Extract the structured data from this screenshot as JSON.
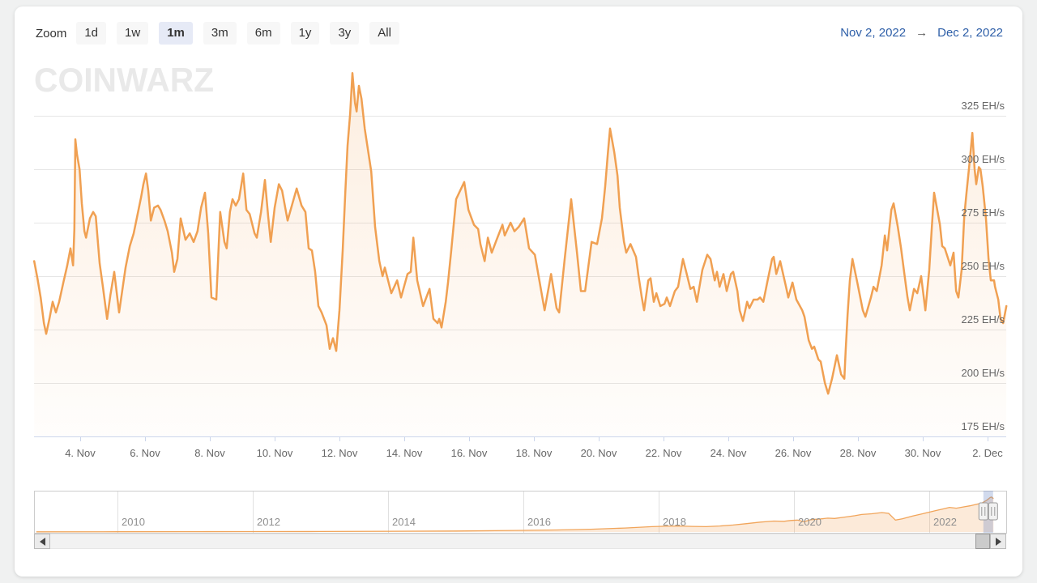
{
  "window": {
    "background": "#f0f1f1",
    "card_background": "#ffffff"
  },
  "watermark": "COINWARZ",
  "toolbar": {
    "zoom_label": "Zoom",
    "buttons": [
      {
        "label": "1d",
        "selected": false
      },
      {
        "label": "1w",
        "selected": false
      },
      {
        "label": "1m",
        "selected": true
      },
      {
        "label": "3m",
        "selected": false
      },
      {
        "label": "6m",
        "selected": false
      },
      {
        "label": "1y",
        "selected": false
      },
      {
        "label": "3y",
        "selected": false
      },
      {
        "label": "All",
        "selected": false
      }
    ],
    "selected_button_color": "#e6eaf6",
    "date_range": {
      "from": "Nov 2, 2022",
      "arrow": "→",
      "to": "Dec 2, 2022",
      "text_color": "#2e5fa8"
    }
  },
  "icons": {
    "range_arrow": "→",
    "scrollbar_left": "left-triangle",
    "scrollbar_right": "right-triangle",
    "navigator_handle": "grip-with-two-lines"
  },
  "chart_data": {
    "type": "area",
    "title": "",
    "y_unit": "EH/s",
    "x_unit": "day of month (November 2022; 31.0+ = December 2022)",
    "x_range_shown": [
      "Nov 2, 2022",
      "Dec 2, 2022"
    ],
    "ylim": [
      175,
      351
    ],
    "grid": "horizontal-only",
    "line_color": "#f0a052",
    "fill_color_top": "rgba(240,160,82,0.18)",
    "fill_color_bottom": "rgba(240,160,82,0.02)",
    "axis_line_color": "#ccd6eb",
    "grid_color": "#e6e6e6",
    "y_ticks": [
      {
        "value": 175,
        "label": "175 EH/s"
      },
      {
        "value": 200,
        "label": "200 EH/s"
      },
      {
        "value": 225,
        "label": "225 EH/s"
      },
      {
        "value": 250,
        "label": "250 EH/s"
      },
      {
        "value": 275,
        "label": "275 EH/s"
      },
      {
        "value": 300,
        "label": "300 EH/s"
      },
      {
        "value": 325,
        "label": "325 EH/s"
      }
    ],
    "x_ticks": [
      {
        "day": 4,
        "label": "4. Nov"
      },
      {
        "day": 6,
        "label": "6. Nov"
      },
      {
        "day": 8,
        "label": "8. Nov"
      },
      {
        "day": 10,
        "label": "10. Nov"
      },
      {
        "day": 12,
        "label": "12. Nov"
      },
      {
        "day": 14,
        "label": "14. Nov"
      },
      {
        "day": 16,
        "label": "16. Nov"
      },
      {
        "day": 18,
        "label": "18. Nov"
      },
      {
        "day": 20,
        "label": "20. Nov"
      },
      {
        "day": 22,
        "label": "22. Nov"
      },
      {
        "day": 24,
        "label": "24. Nov"
      },
      {
        "day": 26,
        "label": "26. Nov"
      },
      {
        "day": 28,
        "label": "28. Nov"
      },
      {
        "day": 30,
        "label": "30. Nov"
      },
      {
        "day": 32,
        "label": "2. Dec"
      }
    ],
    "points": [
      [
        2.58,
        257
      ],
      [
        2.68,
        249
      ],
      [
        2.78,
        240
      ],
      [
        2.88,
        228
      ],
      [
        2.95,
        223
      ],
      [
        3.05,
        230
      ],
      [
        3.15,
        238
      ],
      [
        3.25,
        233
      ],
      [
        3.35,
        238
      ],
      [
        3.48,
        247
      ],
      [
        3.6,
        255
      ],
      [
        3.7,
        263
      ],
      [
        3.78,
        255
      ],
      [
        3.82,
        272
      ],
      [
        3.85,
        314
      ],
      [
        3.9,
        307
      ],
      [
        3.98,
        300
      ],
      [
        4.05,
        284
      ],
      [
        4.13,
        271
      ],
      [
        4.18,
        268
      ],
      [
        4.3,
        277
      ],
      [
        4.4,
        280
      ],
      [
        4.48,
        278
      ],
      [
        4.6,
        256
      ],
      [
        4.7,
        245
      ],
      [
        4.83,
        230
      ],
      [
        4.93,
        241
      ],
      [
        5.05,
        252
      ],
      [
        5.2,
        233
      ],
      [
        5.4,
        254
      ],
      [
        5.53,
        264
      ],
      [
        5.65,
        270
      ],
      [
        5.88,
        287
      ],
      [
        5.95,
        293
      ],
      [
        6.03,
        298
      ],
      [
        6.1,
        290
      ],
      [
        6.18,
        276
      ],
      [
        6.28,
        282
      ],
      [
        6.4,
        283
      ],
      [
        6.48,
        281
      ],
      [
        6.6,
        276
      ],
      [
        6.7,
        271
      ],
      [
        6.83,
        261
      ],
      [
        6.9,
        252
      ],
      [
        7.0,
        258
      ],
      [
        7.1,
        277
      ],
      [
        7.25,
        267
      ],
      [
        7.38,
        270
      ],
      [
        7.5,
        266
      ],
      [
        7.62,
        271
      ],
      [
        7.73,
        282
      ],
      [
        7.85,
        289
      ],
      [
        7.95,
        270
      ],
      [
        8.05,
        240
      ],
      [
        8.2,
        239
      ],
      [
        8.32,
        280
      ],
      [
        8.45,
        266
      ],
      [
        8.52,
        263
      ],
      [
        8.62,
        280
      ],
      [
        8.7,
        286
      ],
      [
        8.8,
        283
      ],
      [
        8.9,
        286
      ],
      [
        9.03,
        298
      ],
      [
        9.13,
        281
      ],
      [
        9.23,
        279
      ],
      [
        9.38,
        270
      ],
      [
        9.45,
        268
      ],
      [
        9.58,
        280
      ],
      [
        9.7,
        295
      ],
      [
        9.8,
        278
      ],
      [
        9.88,
        266
      ],
      [
        10.0,
        282
      ],
      [
        10.13,
        293
      ],
      [
        10.23,
        290
      ],
      [
        10.4,
        276
      ],
      [
        10.55,
        284
      ],
      [
        10.68,
        291
      ],
      [
        10.83,
        283
      ],
      [
        10.95,
        280
      ],
      [
        11.05,
        263
      ],
      [
        11.15,
        262
      ],
      [
        11.25,
        252
      ],
      [
        11.35,
        236
      ],
      [
        11.45,
        233
      ],
      [
        11.6,
        227
      ],
      [
        11.7,
        216
      ],
      [
        11.8,
        221
      ],
      [
        11.9,
        215
      ],
      [
        12.0,
        234
      ],
      [
        12.1,
        262
      ],
      [
        12.18,
        289
      ],
      [
        12.25,
        311
      ],
      [
        12.33,
        326
      ],
      [
        12.4,
        345
      ],
      [
        12.48,
        331
      ],
      [
        12.53,
        327
      ],
      [
        12.6,
        339
      ],
      [
        12.68,
        333
      ],
      [
        12.78,
        319
      ],
      [
        12.88,
        309
      ],
      [
        12.98,
        299
      ],
      [
        13.1,
        273
      ],
      [
        13.23,
        257
      ],
      [
        13.33,
        250
      ],
      [
        13.4,
        254
      ],
      [
        13.6,
        242
      ],
      [
        13.78,
        248
      ],
      [
        13.9,
        240
      ],
      [
        14.1,
        251
      ],
      [
        14.2,
        252
      ],
      [
        14.28,
        268
      ],
      [
        14.4,
        248
      ],
      [
        14.58,
        236
      ],
      [
        14.78,
        244
      ],
      [
        14.9,
        230
      ],
      [
        15.03,
        228
      ],
      [
        15.08,
        230
      ],
      [
        15.15,
        226
      ],
      [
        15.28,
        238
      ],
      [
        15.35,
        247
      ],
      [
        15.45,
        262
      ],
      [
        15.6,
        286
      ],
      [
        15.85,
        294
      ],
      [
        15.98,
        281
      ],
      [
        16.15,
        274
      ],
      [
        16.28,
        272
      ],
      [
        16.35,
        265
      ],
      [
        16.48,
        257
      ],
      [
        16.58,
        268
      ],
      [
        16.7,
        261
      ],
      [
        16.85,
        267
      ],
      [
        17.03,
        274
      ],
      [
        17.1,
        269
      ],
      [
        17.28,
        275
      ],
      [
        17.4,
        271
      ],
      [
        17.53,
        273
      ],
      [
        17.7,
        277
      ],
      [
        17.85,
        263
      ],
      [
        18.03,
        260
      ],
      [
        18.33,
        234
      ],
      [
        18.53,
        251
      ],
      [
        18.7,
        235
      ],
      [
        18.78,
        233
      ],
      [
        18.95,
        258
      ],
      [
        19.15,
        286
      ],
      [
        19.33,
        261
      ],
      [
        19.45,
        243
      ],
      [
        19.58,
        243
      ],
      [
        19.78,
        266
      ],
      [
        19.95,
        265
      ],
      [
        20.1,
        277
      ],
      [
        20.2,
        292
      ],
      [
        20.28,
        307
      ],
      [
        20.35,
        319
      ],
      [
        20.48,
        308
      ],
      [
        20.58,
        297
      ],
      [
        20.65,
        282
      ],
      [
        20.78,
        266
      ],
      [
        20.85,
        261
      ],
      [
        20.98,
        265
      ],
      [
        21.15,
        259
      ],
      [
        21.23,
        250
      ],
      [
        21.33,
        240
      ],
      [
        21.4,
        234
      ],
      [
        21.53,
        248
      ],
      [
        21.6,
        249
      ],
      [
        21.7,
        238
      ],
      [
        21.78,
        242
      ],
      [
        21.9,
        236
      ],
      [
        22.03,
        237
      ],
      [
        22.1,
        240
      ],
      [
        22.2,
        236
      ],
      [
        22.35,
        243
      ],
      [
        22.45,
        245
      ],
      [
        22.6,
        258
      ],
      [
        22.7,
        252
      ],
      [
        22.83,
        244
      ],
      [
        22.93,
        245
      ],
      [
        23.03,
        238
      ],
      [
        23.2,
        253
      ],
      [
        23.35,
        260
      ],
      [
        23.45,
        258
      ],
      [
        23.58,
        248
      ],
      [
        23.65,
        252
      ],
      [
        23.73,
        245
      ],
      [
        23.85,
        251
      ],
      [
        23.95,
        243
      ],
      [
        24.08,
        251
      ],
      [
        24.15,
        252
      ],
      [
        24.28,
        243
      ],
      [
        24.35,
        234
      ],
      [
        24.45,
        229
      ],
      [
        24.58,
        238
      ],
      [
        24.65,
        235
      ],
      [
        24.78,
        239
      ],
      [
        24.9,
        239
      ],
      [
        24.98,
        240
      ],
      [
        25.08,
        238
      ],
      [
        25.2,
        247
      ],
      [
        25.35,
        258
      ],
      [
        25.4,
        259
      ],
      [
        25.48,
        251
      ],
      [
        25.6,
        257
      ],
      [
        25.78,
        245
      ],
      [
        25.85,
        240
      ],
      [
        25.98,
        247
      ],
      [
        26.1,
        239
      ],
      [
        26.28,
        234
      ],
      [
        26.35,
        231
      ],
      [
        26.48,
        220
      ],
      [
        26.58,
        216
      ],
      [
        26.65,
        217
      ],
      [
        26.78,
        211
      ],
      [
        26.85,
        210
      ],
      [
        26.98,
        200
      ],
      [
        27.08,
        195
      ],
      [
        27.2,
        202
      ],
      [
        27.35,
        213
      ],
      [
        27.48,
        204
      ],
      [
        27.58,
        202
      ],
      [
        27.62,
        215
      ],
      [
        27.68,
        232
      ],
      [
        27.75,
        248
      ],
      [
        27.83,
        258
      ],
      [
        27.98,
        247
      ],
      [
        28.15,
        234
      ],
      [
        28.23,
        231
      ],
      [
        28.4,
        240
      ],
      [
        28.48,
        245
      ],
      [
        28.58,
        243
      ],
      [
        28.73,
        255
      ],
      [
        28.83,
        269
      ],
      [
        28.9,
        262
      ],
      [
        29.03,
        281
      ],
      [
        29.1,
        284
      ],
      [
        29.23,
        273
      ],
      [
        29.33,
        263
      ],
      [
        29.45,
        249
      ],
      [
        29.53,
        240
      ],
      [
        29.6,
        234
      ],
      [
        29.73,
        244
      ],
      [
        29.83,
        242
      ],
      [
        29.95,
        250
      ],
      [
        30.08,
        234
      ],
      [
        30.2,
        253
      ],
      [
        30.28,
        273
      ],
      [
        30.35,
        289
      ],
      [
        30.53,
        274
      ],
      [
        30.6,
        264
      ],
      [
        30.68,
        263
      ],
      [
        30.85,
        255
      ],
      [
        30.95,
        261
      ],
      [
        31.03,
        243
      ],
      [
        31.1,
        240
      ],
      [
        31.2,
        253
      ],
      [
        31.28,
        278
      ],
      [
        31.35,
        289
      ],
      [
        31.45,
        304
      ],
      [
        31.53,
        317
      ],
      [
        31.6,
        300
      ],
      [
        31.65,
        293
      ],
      [
        31.73,
        301
      ],
      [
        31.78,
        300
      ],
      [
        31.85,
        292
      ],
      [
        31.95,
        277
      ],
      [
        32.03,
        258
      ],
      [
        32.1,
        248
      ],
      [
        32.2,
        248
      ],
      [
        32.23,
        245
      ],
      [
        32.33,
        239
      ],
      [
        32.4,
        230
      ],
      [
        32.48,
        228
      ],
      [
        32.58,
        236
      ]
    ]
  },
  "navigator": {
    "description": "full-history mini chart (relative hashrate, 2009-2022)",
    "year_ticks": [
      {
        "year": 2010,
        "label": "2010"
      },
      {
        "year": 2012,
        "label": "2012"
      },
      {
        "year": 2014,
        "label": "2014"
      },
      {
        "year": 2016,
        "label": "2016"
      },
      {
        "year": 2018,
        "label": "2018"
      },
      {
        "year": 2020,
        "label": "2020"
      },
      {
        "year": 2022,
        "label": "2022"
      }
    ],
    "selected_range": {
      "from_year": 2022.8,
      "to_year": 2022.94
    },
    "mask_color": "rgba(102,133,194,0.3)",
    "outline_color": "#cccccc",
    "series": [
      [
        2008.8,
        0.004
      ],
      [
        2010.0,
        0.006
      ],
      [
        2011.0,
        0.008
      ],
      [
        2012.0,
        0.01
      ],
      [
        2013.0,
        0.012
      ],
      [
        2014.0,
        0.018
      ],
      [
        2015.0,
        0.025
      ],
      [
        2016.0,
        0.04
      ],
      [
        2016.5,
        0.05
      ],
      [
        2017.0,
        0.07
      ],
      [
        2017.5,
        0.1
      ],
      [
        2017.9,
        0.135
      ],
      [
        2018.1,
        0.145
      ],
      [
        2018.3,
        0.15
      ],
      [
        2018.5,
        0.14
      ],
      [
        2018.7,
        0.135
      ],
      [
        2018.9,
        0.15
      ],
      [
        2019.1,
        0.175
      ],
      [
        2019.3,
        0.21
      ],
      [
        2019.5,
        0.25
      ],
      [
        2019.7,
        0.275
      ],
      [
        2019.85,
        0.27
      ],
      [
        2019.95,
        0.29
      ],
      [
        2020.05,
        0.3
      ],
      [
        2020.15,
        0.26
      ],
      [
        2020.25,
        0.31
      ],
      [
        2020.4,
        0.33
      ],
      [
        2020.5,
        0.35
      ],
      [
        2020.6,
        0.34
      ],
      [
        2020.75,
        0.375
      ],
      [
        2020.9,
        0.41
      ],
      [
        2021.0,
        0.44
      ],
      [
        2021.15,
        0.46
      ],
      [
        2021.3,
        0.49
      ],
      [
        2021.4,
        0.47
      ],
      [
        2021.5,
        0.3
      ],
      [
        2021.6,
        0.33
      ],
      [
        2021.75,
        0.4
      ],
      [
        2021.9,
        0.46
      ],
      [
        2022.0,
        0.5
      ],
      [
        2022.1,
        0.54
      ],
      [
        2022.2,
        0.58
      ],
      [
        2022.3,
        0.62
      ],
      [
        2022.4,
        0.6
      ],
      [
        2022.5,
        0.63
      ],
      [
        2022.6,
        0.66
      ],
      [
        2022.7,
        0.7
      ],
      [
        2022.78,
        0.73
      ],
      [
        2022.85,
        0.8
      ],
      [
        2022.9,
        0.87
      ],
      [
        2022.92,
        0.88
      ],
      [
        2022.95,
        0.84
      ]
    ]
  }
}
